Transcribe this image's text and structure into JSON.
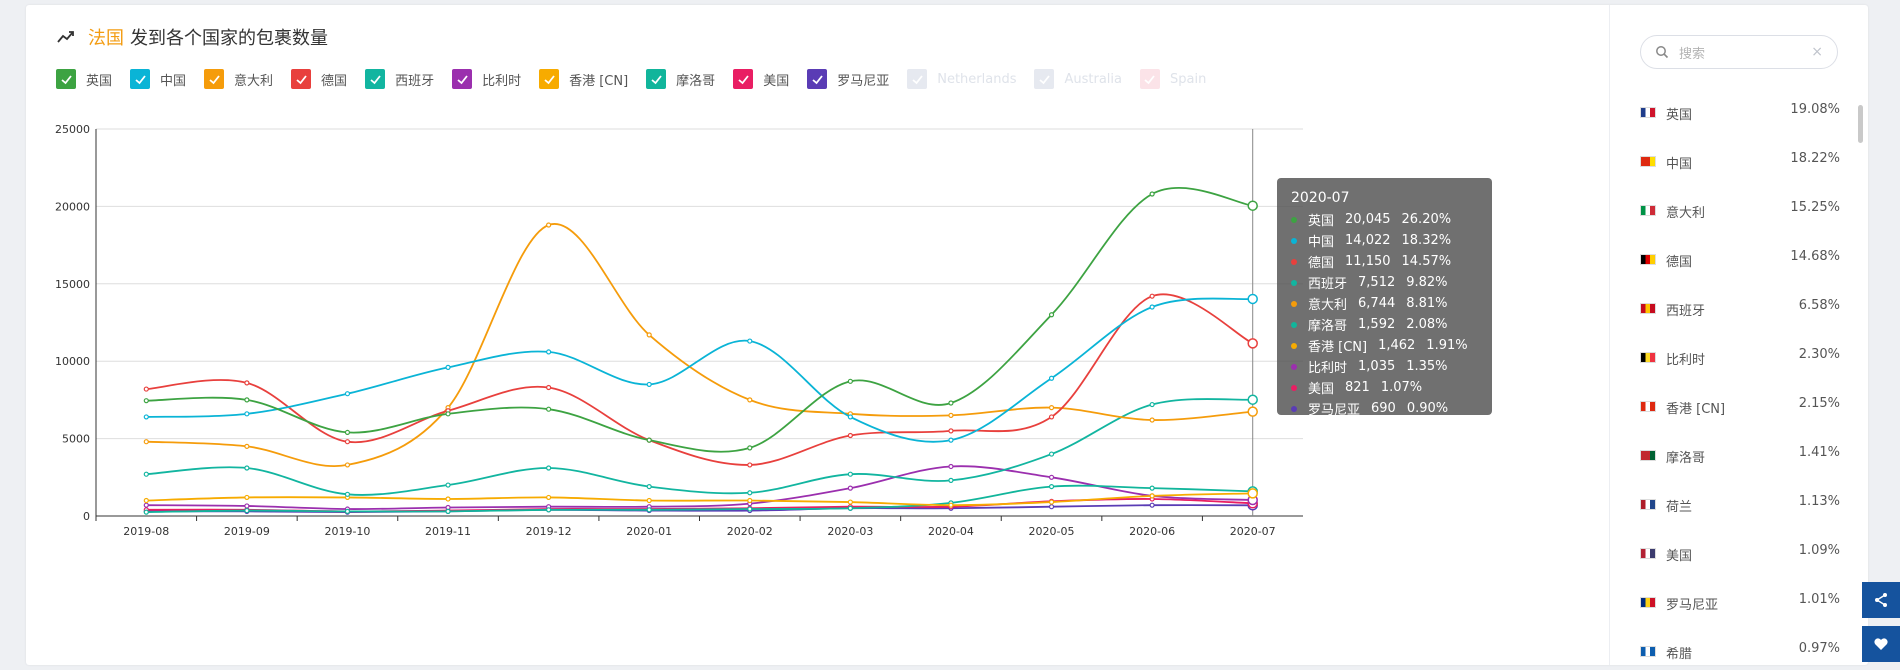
{
  "title": {
    "highlight": "法国",
    "text": "发到各个国家的包裹数量"
  },
  "legend": [
    {
      "label": "英国",
      "color": "#3da342",
      "on": true
    },
    {
      "label": "中国",
      "color": "#0ab4d6",
      "on": true
    },
    {
      "label": "意大利",
      "color": "#f59c0b",
      "on": true
    },
    {
      "label": "德国",
      "color": "#e8403d",
      "on": true
    },
    {
      "label": "西班牙",
      "color": "#12b5a0",
      "on": true
    },
    {
      "label": "比利时",
      "color": "#9b2fae",
      "on": true
    },
    {
      "label": "香港 [CN]",
      "color": "#f7ab00",
      "on": true
    },
    {
      "label": "摩洛哥",
      "color": "#11b59b",
      "on": true
    },
    {
      "label": "美国",
      "color": "#e91e63",
      "on": true
    },
    {
      "label": "罗马尼亚",
      "color": "#5a3cb5",
      "on": true
    },
    {
      "label": "Netherlands",
      "color": "#e6e9f0",
      "on": false
    },
    {
      "label": "Australia",
      "color": "#e6e9f0",
      "on": false
    },
    {
      "label": "Spain",
      "color": "#fbe3e8",
      "on": false
    }
  ],
  "chart_data": {
    "type": "line",
    "x": [
      "2019-08",
      "2019-09",
      "2019-10",
      "2019-11",
      "2019-12",
      "2020-01",
      "2020-02",
      "2020-03",
      "2020-04",
      "2020-05",
      "2020-06",
      "2020-07"
    ],
    "ylim": [
      0,
      25000
    ],
    "yticks": [
      0,
      5000,
      10000,
      15000,
      20000,
      25000
    ],
    "grid": true,
    "legend_position": "top-left",
    "series": [
      {
        "name": "英国",
        "color": "#3da342",
        "values": [
          7450,
          7500,
          5400,
          6600,
          6900,
          4900,
          4400,
          8700,
          7300,
          13000,
          20800,
          20045
        ]
      },
      {
        "name": "中国",
        "color": "#0ab4d6",
        "values": [
          6400,
          6600,
          7900,
          9600,
          10600,
          8500,
          11300,
          6400,
          4900,
          8900,
          13500,
          14022
        ]
      },
      {
        "name": "德国",
        "color": "#e8403d",
        "values": [
          8200,
          8600,
          4800,
          6800,
          8300,
          4900,
          3300,
          5200,
          5500,
          6400,
          14200,
          11150
        ]
      },
      {
        "name": "意大利",
        "color": "#f59c0b",
        "values": [
          4800,
          4500,
          3300,
          7000,
          18800,
          11700,
          7500,
          6600,
          6500,
          7000,
          6200,
          6744
        ]
      },
      {
        "name": "西班牙",
        "color": "#12b5a0",
        "values": [
          2700,
          3100,
          1400,
          2000,
          3100,
          1900,
          1500,
          2700,
          2300,
          4000,
          7200,
          7512
        ]
      },
      {
        "name": "香港 [CN]",
        "color": "#f7ab00",
        "values": [
          1000,
          1200,
          1200,
          1100,
          1200,
          1000,
          1000,
          900,
          700,
          900,
          1300,
          1462
        ]
      },
      {
        "name": "摩洛哥",
        "color": "#11b59b",
        "values": [
          250,
          350,
          300,
          300,
          400,
          400,
          450,
          500,
          850,
          1900,
          1800,
          1592
        ]
      },
      {
        "name": "比利时",
        "color": "#9b2fae",
        "values": [
          700,
          650,
          450,
          550,
          600,
          600,
          800,
          1800,
          3200,
          2500,
          1300,
          1035
        ]
      },
      {
        "name": "美国",
        "color": "#e91e63",
        "values": [
          400,
          400,
          300,
          350,
          450,
          450,
          500,
          600,
          600,
          950,
          1100,
          821
        ]
      },
      {
        "name": "罗马尼亚",
        "color": "#5a3cb5",
        "values": [
          300,
          300,
          250,
          300,
          400,
          350,
          350,
          500,
          500,
          600,
          700,
          690
        ]
      }
    ],
    "tooltip": {
      "title": "2020-07",
      "rows": [
        {
          "name": "英国",
          "value": "20,045",
          "pct": "26.20%",
          "color": "#3da342"
        },
        {
          "name": "中国",
          "value": "14,022",
          "pct": "18.32%",
          "color": "#0ab4d6"
        },
        {
          "name": "德国",
          "value": "11,150",
          "pct": "14.57%",
          "color": "#e8403d"
        },
        {
          "name": "西班牙",
          "value": "7,512",
          "pct": "9.82%",
          "color": "#12b5a0"
        },
        {
          "name": "意大利",
          "value": "6,744",
          "pct": "8.81%",
          "color": "#f59c0b"
        },
        {
          "name": "摩洛哥",
          "value": "1,592",
          "pct": "2.08%",
          "color": "#11b59b"
        },
        {
          "name": "香港 [CN]",
          "value": "1,462",
          "pct": "1.91%",
          "color": "#f7ab00"
        },
        {
          "name": "比利时",
          "value": "1,035",
          "pct": "1.35%",
          "color": "#9b2fae"
        },
        {
          "name": "美国",
          "value": "821",
          "pct": "1.07%",
          "color": "#e91e63"
        },
        {
          "name": "罗马尼亚",
          "value": "690",
          "pct": "0.90%",
          "color": "#5a3cb5"
        }
      ]
    }
  },
  "sidebar": {
    "search_placeholder": "搜索",
    "clear_icon": "close-icon",
    "ranking": [
      {
        "name": "英国",
        "pct": "19.08%",
        "flag": [
          "#1f3c8a",
          "#ffffff",
          "#cf142b"
        ]
      },
      {
        "name": "中国",
        "pct": "18.22%",
        "flag": [
          "#de2910",
          "#de2910",
          "#ffde00"
        ]
      },
      {
        "name": "意大利",
        "pct": "15.25%",
        "flag": [
          "#009246",
          "#ffffff",
          "#ce2b37"
        ]
      },
      {
        "name": "德国",
        "pct": "14.68%",
        "flag": [
          "#000000",
          "#dd0000",
          "#ffce00"
        ]
      },
      {
        "name": "西班牙",
        "pct": "6.58%",
        "flag": [
          "#c60b1e",
          "#ffc400",
          "#c60b1e"
        ]
      },
      {
        "name": "比利时",
        "pct": "2.30%",
        "flag": [
          "#000000",
          "#fdda24",
          "#ef3340"
        ]
      },
      {
        "name": "香港 [CN]",
        "pct": "2.15%",
        "flag": [
          "#de2910",
          "#ffffff",
          "#de2910"
        ]
      },
      {
        "name": "摩洛哥",
        "pct": "1.41%",
        "flag": [
          "#c1272d",
          "#c1272d",
          "#006233"
        ]
      },
      {
        "name": "荷兰",
        "pct": "1.13%",
        "flag": [
          "#ae1c28",
          "#ffffff",
          "#21468b"
        ]
      },
      {
        "name": "美国",
        "pct": "1.09%",
        "flag": [
          "#b22234",
          "#ffffff",
          "#3c3b6e"
        ]
      },
      {
        "name": "罗马尼亚",
        "pct": "1.01%",
        "flag": [
          "#002b7f",
          "#fcd116",
          "#ce1126"
        ]
      },
      {
        "name": "希腊",
        "pct": "0.97%",
        "flag": [
          "#0d5eaf",
          "#ffffff",
          "#0d5eaf"
        ]
      }
    ]
  },
  "float_buttons": [
    {
      "icon": "share-icon"
    },
    {
      "icon": "heart-icon"
    }
  ]
}
